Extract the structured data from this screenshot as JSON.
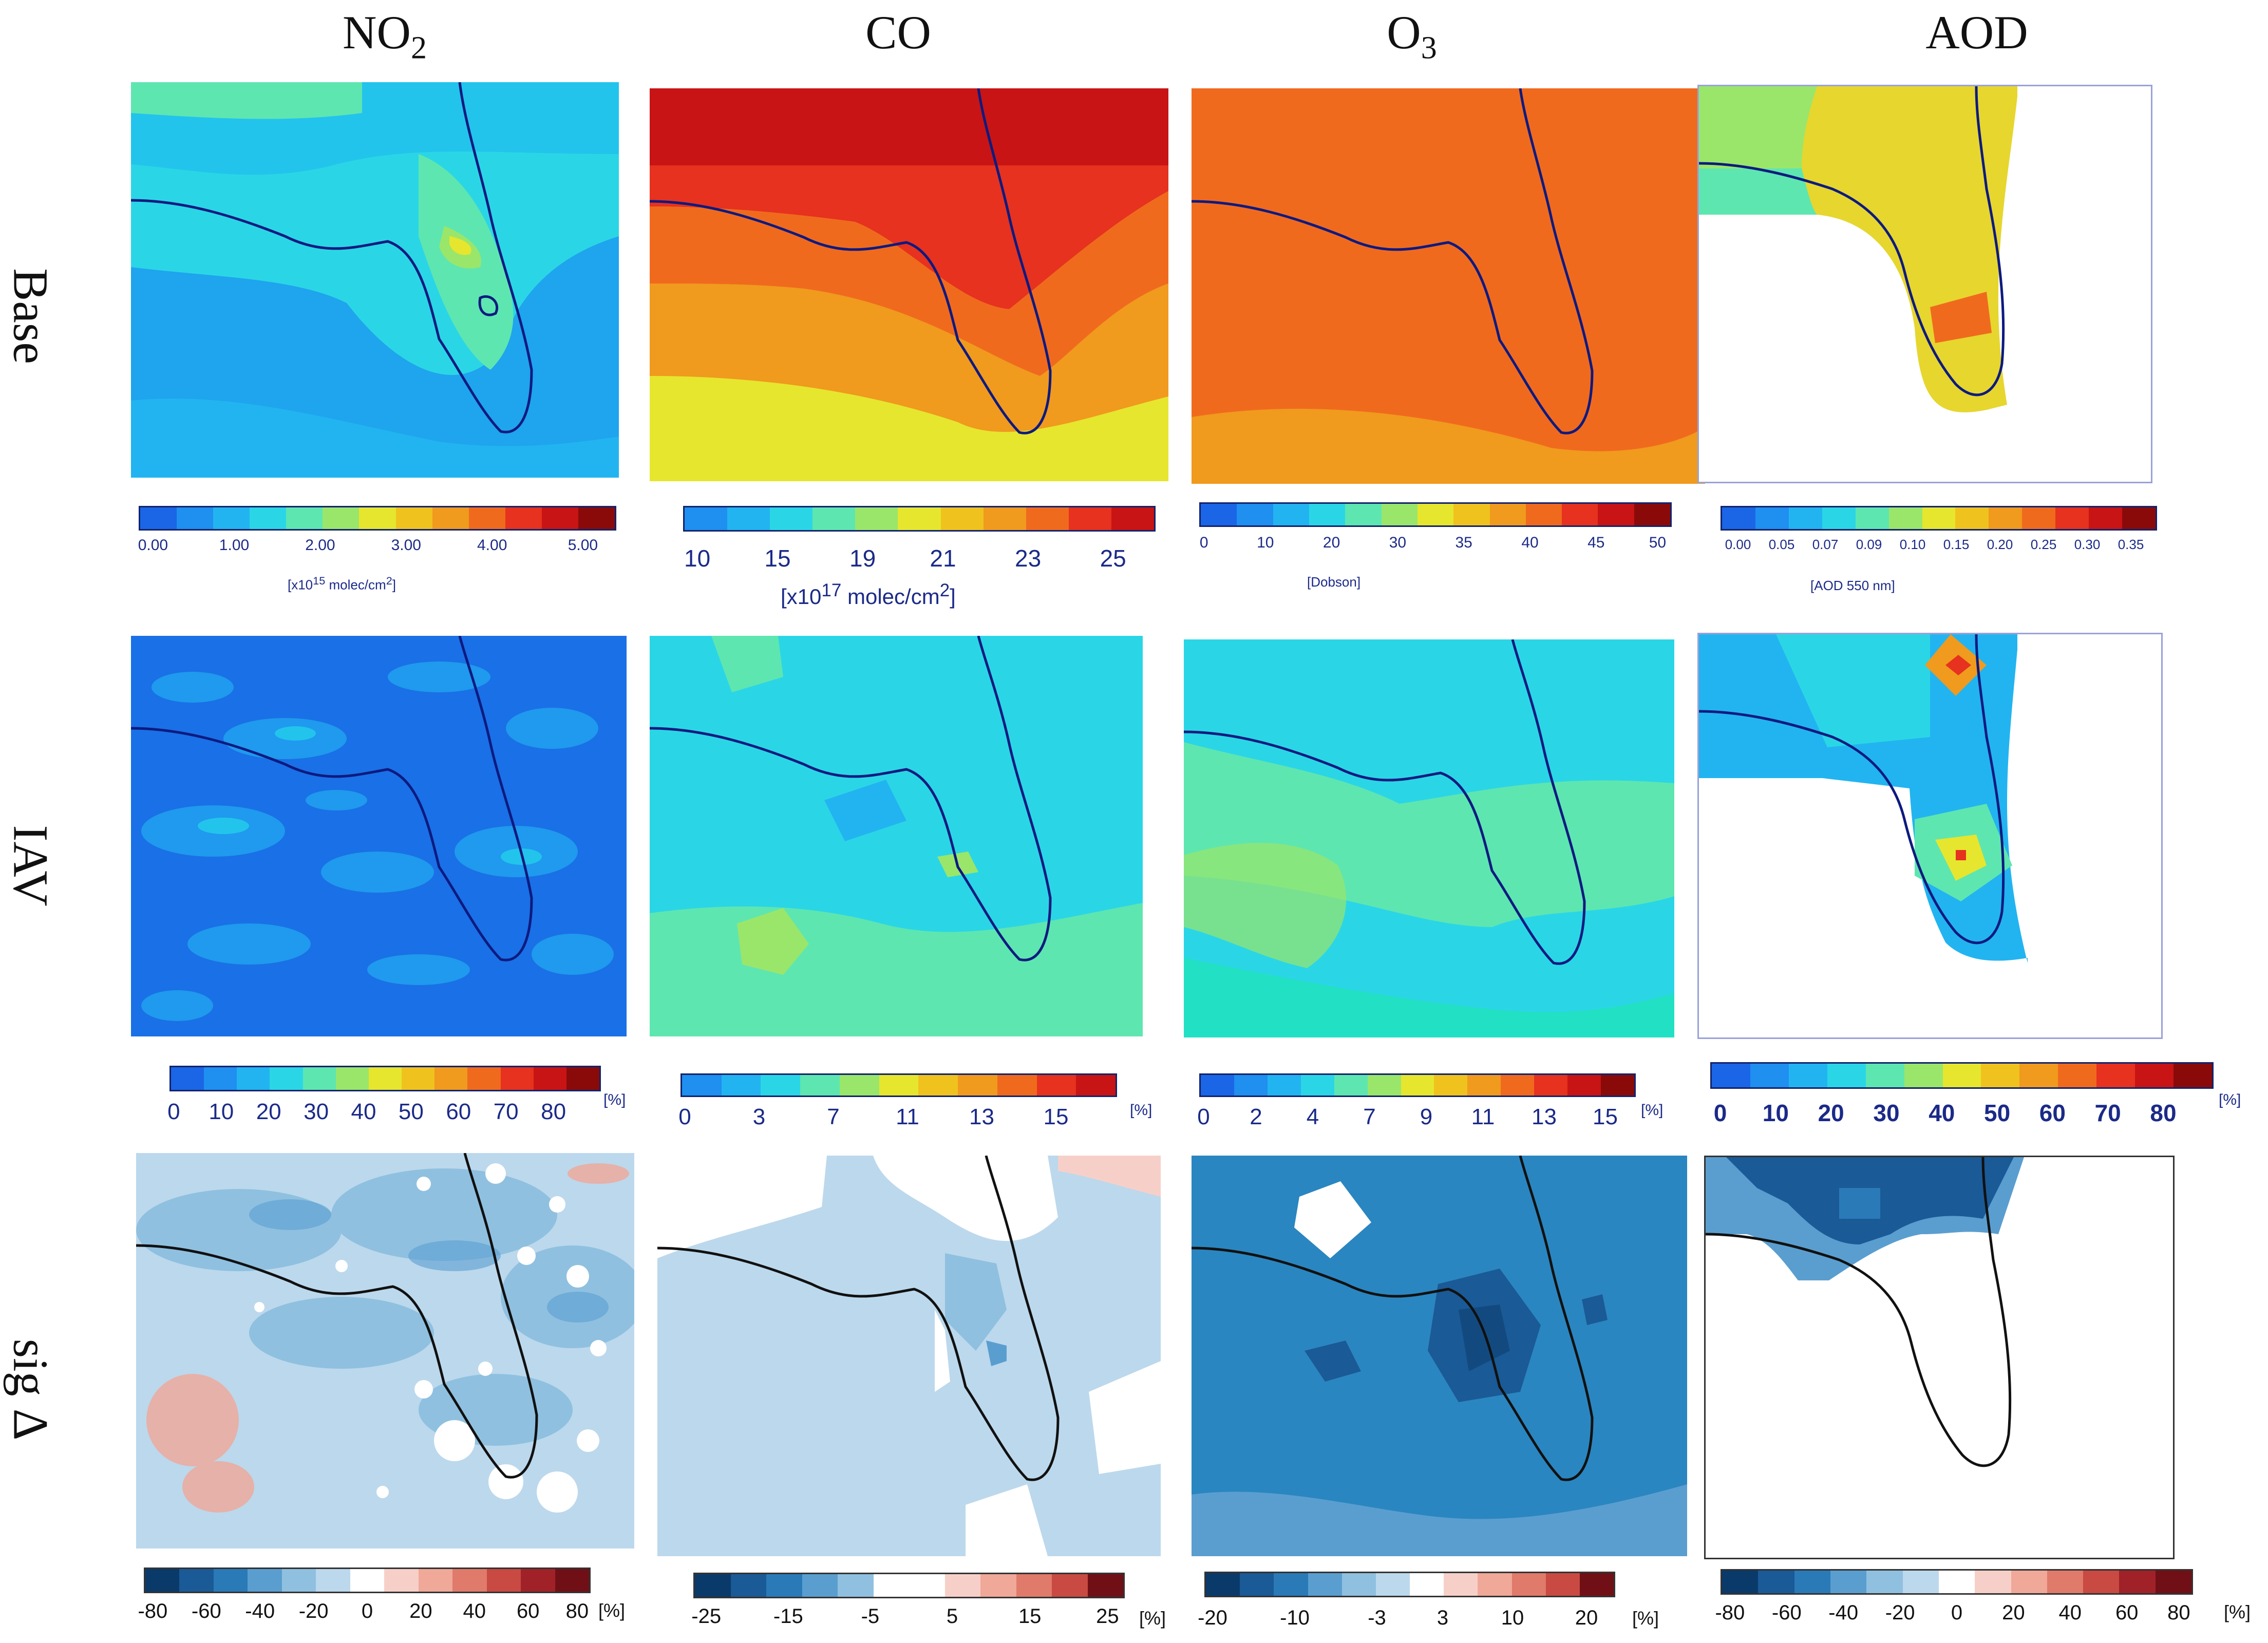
{
  "columns": [
    {
      "pre": "NO",
      "sub": "2",
      "post": ""
    },
    {
      "pre": "CO",
      "sub": "",
      "post": ""
    },
    {
      "pre": "O",
      "sub": "3",
      "post": ""
    },
    {
      "pre": "AOD",
      "sub": "",
      "post": ""
    }
  ],
  "rows": [
    "Base",
    "IAV",
    "sig Δ"
  ],
  "colorbars": {
    "base_no2": {
      "ticks": [
        "0.00",
        "1.00",
        "2.00",
        "3.00",
        "4.00",
        "5.00"
      ],
      "unit_pre": "[x10",
      "unit_exp": "15",
      "unit_post": " molec/cm",
      "unit_sq": "2",
      "unit_close": "]"
    },
    "base_co": {
      "ticks": [
        "10",
        "15",
        "19",
        "21",
        "23",
        "25"
      ],
      "unit_pre": "[x10",
      "unit_exp": "17",
      "unit_post": " molec/cm",
      "unit_sq": "2",
      "unit_close": "]"
    },
    "base_o3": {
      "ticks": [
        "0",
        "10",
        "20",
        "30",
        "35",
        "40",
        "45",
        "50"
      ],
      "unit": "[Dobson]"
    },
    "base_aod": {
      "ticks": [
        "0.00",
        "0.05",
        "0.07",
        "0.09",
        "0.10",
        "0.15",
        "0.20",
        "0.25",
        "0.30",
        "0.35"
      ],
      "unit": "[AOD 550 nm]"
    },
    "iav_no2": {
      "ticks": [
        "0",
        "10",
        "20",
        "30",
        "40",
        "50",
        "60",
        "70",
        "80"
      ],
      "unit": "[%]"
    },
    "iav_co": {
      "ticks": [
        "0",
        "3",
        "7",
        "11",
        "13",
        "15"
      ],
      "unit": "[%]"
    },
    "iav_o3": {
      "ticks": [
        "0",
        "2",
        "4",
        "7",
        "9",
        "11",
        "13",
        "15"
      ],
      "unit": "[%]"
    },
    "iav_aod": {
      "ticks": [
        "0",
        "10",
        "20",
        "30",
        "40",
        "50",
        "60",
        "70",
        "80"
      ],
      "unit": "[%]"
    },
    "sig_no2": {
      "ticks": [
        "-80",
        "-60",
        "-40",
        "-20",
        "0",
        "20",
        "40",
        "60",
        "80"
      ],
      "unit": "[%]"
    },
    "sig_co": {
      "ticks": [
        "-25",
        "-15",
        "-5",
        "5",
        "15",
        "25"
      ],
      "unit": "[%]"
    },
    "sig_o3": {
      "ticks": [
        "-20",
        "-10",
        "-3",
        "3",
        "10",
        "20"
      ],
      "unit": "[%]"
    },
    "sig_aod": {
      "ticks": [
        "-80",
        "-60",
        "-40",
        "-20",
        "0",
        "20",
        "40",
        "60",
        "80"
      ],
      "unit": "[%]"
    }
  },
  "palettes": {
    "rainbow": [
      "#1a66e6",
      "#1f8ff0",
      "#22b4f0",
      "#2ad6e6",
      "#5ee6b0",
      "#9ae66a",
      "#e6e62e",
      "#f0c21e",
      "#f09a1e",
      "#f06a1e",
      "#e6321e",
      "#c81414",
      "#8a0a0a"
    ],
    "diverge": [
      "#0a3a6a",
      "#1a5a96",
      "#2a7ab8",
      "#5a9ed0",
      "#8fc0e0",
      "#bcd8ec",
      "#ffffff",
      "#f6d0c8",
      "#f0a898",
      "#e07a6a",
      "#c84a42",
      "#a02228",
      "#701016"
    ]
  }
}
